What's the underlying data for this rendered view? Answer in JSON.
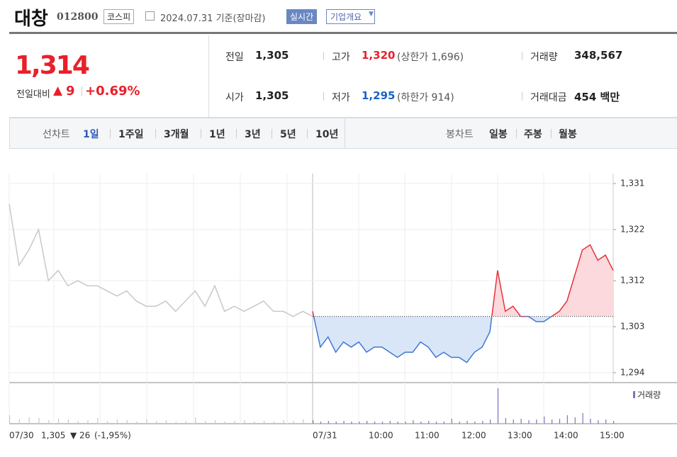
{
  "header": {
    "name": "대창",
    "code": "012800",
    "market": "코스피",
    "date": "2024.07.31 기준(장마감)",
    "realtime": "실시간",
    "company": "기업개요"
  },
  "summary": {
    "price": "1,314",
    "change_label": "전일대비",
    "change": "9",
    "change_rate": "+0.69%",
    "items": [
      {
        "label": "전일",
        "value": "1,305"
      },
      {
        "label": "고가",
        "value": "1,320",
        "note": "(상한가 1,696)"
      },
      {
        "label": "거래량",
        "value": "348,567"
      },
      {
        "label": "시가",
        "value": "1,305"
      },
      {
        "label": "저가",
        "value": "1,295",
        "note": "(하한가 914)"
      },
      {
        "label": "거래대금",
        "value": "454 백만"
      }
    ]
  },
  "tabs": {
    "line_label": "선차트",
    "line": [
      "1일",
      "1주일",
      "3개월",
      "1년",
      "3년",
      "5년",
      "10년"
    ],
    "candle_label": "봉차트",
    "candle": [
      "일봉",
      "주봉",
      "월봉"
    ]
  },
  "chart_data": {
    "type": "line",
    "ylim": [
      1294,
      1331
    ],
    "yticks": [
      {
        "value": 1294,
        "label": "1,294"
      },
      {
        "value": 1303,
        "label": "1,303"
      },
      {
        "value": 1312,
        "label": "1,312"
      },
      {
        "value": 1322,
        "label": "1,322"
      },
      {
        "value": 1331,
        "label": "1,331"
      }
    ],
    "base": 1305,
    "x_labels": [
      "07/30",
      "07/31",
      "10:00",
      "11:00",
      "12:00",
      "13:00",
      "14:00",
      "15:00"
    ],
    "volume_label": "거래량",
    "prev_note": {
      "date": "07/30",
      "close": "1,305",
      "change": "▼ 26",
      "rate": "(-1,95%)"
    },
    "series": [
      {
        "name": "07/30",
        "color": "#c8c8c8",
        "values": [
          1327,
          1315,
          1318,
          1322,
          1312,
          1314,
          1311,
          1312,
          1311,
          1311,
          1310,
          1309,
          1310,
          1308,
          1307,
          1307,
          1308,
          1306,
          1308,
          1310,
          1307,
          1311,
          1306,
          1307,
          1306,
          1307,
          1308,
          1306,
          1306,
          1305,
          1306,
          1305
        ],
        "volumes": [
          12,
          6,
          9,
          8,
          5,
          7,
          6,
          4,
          5,
          8,
          4,
          6,
          5,
          3,
          7,
          4,
          5,
          3,
          4,
          9,
          4,
          5,
          3,
          4,
          5,
          3,
          4,
          3,
          5,
          4,
          6,
          4
        ]
      },
      {
        "name": "07/31",
        "color": "#e8323c",
        "values": [
          1306,
          1299,
          1301,
          1298,
          1300,
          1299,
          1300,
          1298,
          1299,
          1299,
          1298,
          1297,
          1298,
          1298,
          1300,
          1299,
          1297,
          1298,
          1297,
          1297,
          1296,
          1298,
          1299,
          1302,
          1314,
          1306,
          1307,
          1305,
          1305,
          1304,
          1304,
          1305,
          1306,
          1308,
          1313,
          1318,
          1319,
          1316,
          1317,
          1314
        ],
        "volumes": [
          5,
          3,
          4,
          3,
          4,
          3,
          3,
          4,
          3,
          3,
          4,
          3,
          3,
          5,
          3,
          4,
          3,
          3,
          7,
          3,
          4,
          3,
          4,
          6,
          50,
          8,
          6,
          7,
          5,
          6,
          10,
          6,
          7,
          12,
          9,
          15,
          7,
          5,
          6,
          4
        ]
      }
    ]
  }
}
